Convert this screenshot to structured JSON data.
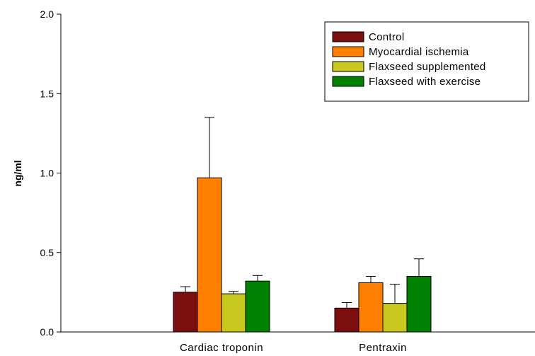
{
  "chart_data": {
    "type": "bar",
    "ylabel": "ng/ml",
    "xlabel": "",
    "ylim": [
      0,
      2.0
    ],
    "yticks": [
      "0.0",
      "0.5",
      "1.0",
      "1.5",
      "2.0"
    ],
    "categories": [
      "Cardiac troponin",
      "Pentraxin"
    ],
    "legend_position": "top-right",
    "series": [
      {
        "name": "Control",
        "color": "#7b0e0e",
        "values": [
          0.25,
          0.15
        ],
        "errors": [
          0.035,
          0.035
        ]
      },
      {
        "name": "Myocardial ischemia",
        "color": "#ff8000",
        "values": [
          0.97,
          0.31
        ],
        "errors": [
          0.38,
          0.04
        ]
      },
      {
        "name": "Flaxseed supplemented",
        "color": "#c8c81e",
        "values": [
          0.24,
          0.18
        ],
        "errors": [
          0.015,
          0.12
        ]
      },
      {
        "name": "Flaxseed with exercise",
        "color": "#008000",
        "values": [
          0.32,
          0.35
        ],
        "errors": [
          0.035,
          0.11
        ]
      }
    ]
  }
}
